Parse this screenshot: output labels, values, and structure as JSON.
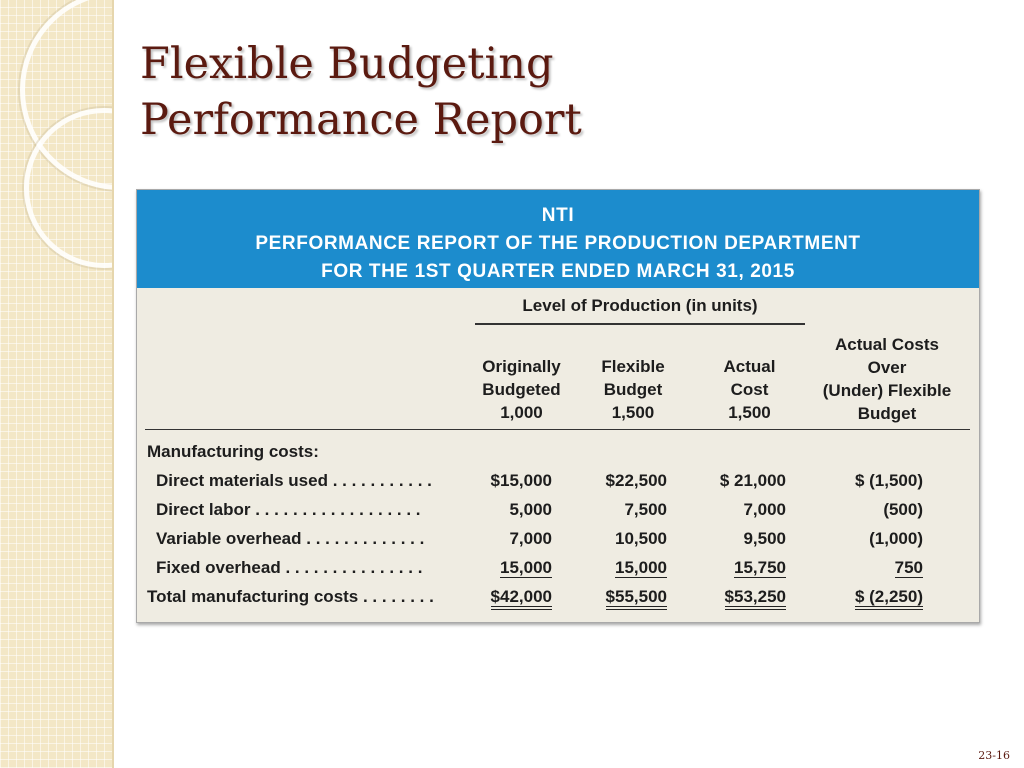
{
  "slide": {
    "title_line1": "Flexible Budgeting",
    "title_line2": "Performance Report",
    "page_number": "23-16"
  },
  "report": {
    "company": "NTI",
    "heading": "PERFORMANCE REPORT OF THE PRODUCTION DEPARTMENT",
    "period": "FOR THE 1ST QUARTER ENDED MARCH 31, 2015",
    "level_label": "Level of Production (in units)",
    "columns": [
      {
        "line1": "Originally",
        "line2": "Budgeted",
        "line3": "1,000"
      },
      {
        "line1": "Flexible",
        "line2": "Budget",
        "line3": "1,500"
      },
      {
        "line1": "Actual",
        "line2": "Cost",
        "line3": "1,500"
      },
      {
        "line1": "Actual Costs",
        "line2": "Over",
        "line3": "(Under) Flexible",
        "line4": "Budget"
      }
    ],
    "section_label": "Manufacturing costs:",
    "rows": [
      {
        "label": "Direct materials used",
        "dots": " . . . . . . . . . . .",
        "orig": "$15,000",
        "flex": "$22,500",
        "actual": "$ 21,000",
        "variance": "$ (1,500)"
      },
      {
        "label": "Direct labor",
        "dots": "  . . . . . . . . . . . . . . . . . .",
        "orig": "5,000",
        "flex": "7,500",
        "actual": "7,000",
        "variance": "(500)"
      },
      {
        "label": "Variable overhead",
        "dots": "  . . . . . . . . . . . . .",
        "orig": "7,000",
        "flex": "10,500",
        "actual": "9,500",
        "variance": "(1,000)"
      },
      {
        "label": "Fixed overhead",
        "dots": "  . . . . . . . . . . . . . . .",
        "orig": "15,000",
        "flex": "15,000",
        "actual": "15,750",
        "variance": "750"
      }
    ],
    "total": {
      "label": "Total manufacturing costs",
      "dots": " . . . . . . . .",
      "orig": "$42,000",
      "flex": "$55,500",
      "actual": "$53,250",
      "variance": "$ (2,250)"
    }
  },
  "colors": {
    "header_blue": "#1c8ccd",
    "title_maroon": "#5b1a10",
    "table_bg": "#efece2",
    "side_strip": "#f3e7c6"
  }
}
